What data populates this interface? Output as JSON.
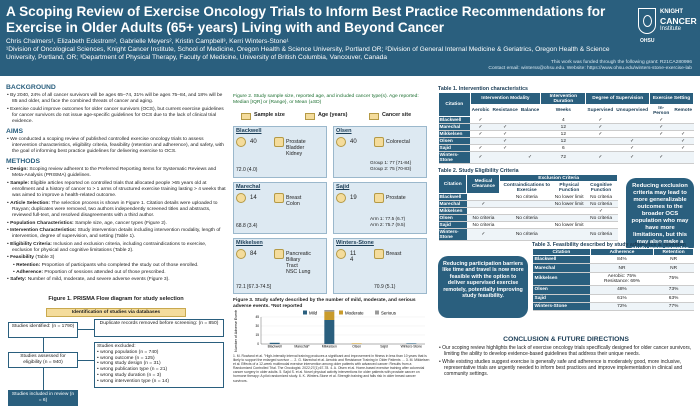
{
  "header": {
    "title": "A Scoping Review of Exercise Oncology Trials to Inform Best Practice Recommendations for Exercise in Older Adults (65+ years) Living with and Beyond Cancer",
    "authors": "Chris Chalmers¹, Elizabeth Eckstrom², Gabrielle Meyers², Kristin Campbell³, Kerri Winters-Stone¹",
    "affiliations": "¹Division of Oncological Sciences, Knight Cancer Institute, School of Medicine, Oregon Health & Science University, Portland OR; ²Division of General Internal Medicine & Geriatrics, Oregon Health & Science University, Portland, OR; ³Department of Physical Therapy, Faculty of Medicine, University of British Columbia, Vancouver, Canada",
    "funding": "This work was funded through the following grant: R21CA280996",
    "contact": "Contact email: winterss@ohsu.edu. Website: https://www.ohsu.edu/winters-stone-exercise-lab"
  },
  "logo": {
    "line1": "KNIGHT",
    "line2": "CANCER",
    "line3": "Institute",
    "line4": "OHSU"
  },
  "background": {
    "heading": "BACKGROUND",
    "bullets": [
      "By 2040, 24% of all cancer survivors will be ages 65–74, 31% will be ages 75–84, and 18% will be 85 and older, and face the combined threats of cancer and aging.",
      "Exercise could improve outcomes for older cancer survivors (OCS), but current exercise guidelines for cancer survivors do not issue age-specific guidelines for OCS due to the lack of clinical trial evidence."
    ]
  },
  "aims": {
    "heading": "AIMS",
    "bullets": [
      "We conducted a scoping review of published controlled exercise oncology trials to assess intervention characteristics, eligibility criteria, feasibility (retention and adherence), and safety, with the goal of informing best practice guidelines for delivering exercise to OCS."
    ]
  },
  "methods": {
    "heading": "METHODS",
    "bullets": [
      {
        "label": "Design:",
        "text": "Scoping review adherent to the Preferred Reporting Items for Systematic Reviews and Meta-Analysis (PRISMA) guidelines."
      },
      {
        "label": "Sample:",
        "text": "Eligible articles reported on controlled trials that allocated people >65 years old at enrollment and a history of cancer to > 1 arms of structured exercise training lasting > 4 weeks that was aimed to improve a health-related outcome."
      },
      {
        "label": "Article Selection:",
        "text": "The selection process is shown in Figure 1. Citation details were uploaded to Rayyan; duplicates were removed, two authors independently screened titles and abstracts, reviewed full-text, and resolved disagreements with a third author."
      },
      {
        "label": "Population Characteristics:",
        "text": "Sample size, age, cancer types (Figure 2)."
      },
      {
        "label": "Intervention Characteristics:",
        "text": "Study intervention details including intervention modality, length of intervention, degree of supervision, and setting (Table 1)."
      },
      {
        "label": "Eligibility Criteria:",
        "text": "Inclusion and exclusion criteria, including contraindications to exercise, exclusion for physical and cognitive limitations (Table 2)."
      },
      {
        "label": "Feasibility",
        "text": "(Table 3)"
      }
    ],
    "sub_bullets": [
      {
        "label": "Retention:",
        "text": "Proportion of participants who completed the study out of those enrolled."
      },
      {
        "label": "Adherence:",
        "text": "Proportion of sessions attended out of those prescribed."
      }
    ],
    "safety": {
      "label": "Safety:",
      "text": "Number of mild, moderate, and severe adverse events (Figure 3)."
    }
  },
  "prisma": {
    "caption": "Figure 1. PRISMA Flow diagram for study selection",
    "identification": "Identification of studies via databases",
    "identified": "Studies identified: (n = 1790)",
    "duplicates": "Duplicate records removed before screening: (n = 850)",
    "assessed": "Studies assessed for eligibility (n = 940)",
    "excluded_title": "Studies excluded:",
    "excluded": [
      "wrong population (n = 740)",
      "wrong outcome (n = 125)",
      "wrong study design (n = 31)",
      "wrong publication type (n = 21)",
      "wrong study duration (n = 3)",
      "wrong intervention type (n = 14)"
    ],
    "included": "Studies included in review (n = 6)"
  },
  "figure2": {
    "caption": "Figure 2. Study sample size, reported age, and included cancer type(s). Age reported: Median [IQR] or {Range}, or Mean (±SD)",
    "legend": [
      "Sample size",
      "Age (years)",
      "Cancer site"
    ],
    "panels": [
      {
        "name": "Blackwell",
        "size": "40",
        "age": "72.0 (4.0)",
        "cancer": "Prostate\nBladder\nKidney",
        "groups": ""
      },
      {
        "name": "Olsen",
        "size": "40",
        "age": "",
        "cancer": "Colorectal",
        "groups": "Group 1: 77 {71-84}\nGroup 2: 75 {70-83}"
      },
      {
        "name": "Marechal",
        "size": "14",
        "age": "68.8 (3.4)",
        "cancer": "Breast\nColon",
        "groups": ""
      },
      {
        "name": "Sajid",
        "size": "19",
        "age": "",
        "cancer": "Prostate",
        "groups": "Arm 1: 77.5 (6.7)\nArm 2: 75.7 (9.5)"
      },
      {
        "name": "Mikkelsen",
        "size": "84",
        "age": "72.1 [67.3-74.5]",
        "cancer": "Pancreatic\nBiliary\nTract\nNSC Lung",
        "groups": ""
      },
      {
        "name": "Winters-Stone",
        "size": "11\n4",
        "age": "70.9 (5.1)",
        "cancer": "Breast",
        "groups": ""
      }
    ]
  },
  "figure3": {
    "caption": "Figure 3. Study safety described by the number of mild, moderate, and serious adverse events. *Not reported",
    "legend": [
      "Mild",
      "Moderate",
      "Serious"
    ],
    "ylabel": "Number of Adverse Events"
  },
  "chart_data": {
    "type": "bar",
    "title": "",
    "xlabel": "",
    "ylabel": "Number of Adverse Events",
    "categories": [
      "Blackwell",
      "Marechal*",
      "Mikkelsen",
      "Olsen",
      "Sajid",
      "Winters-Stone"
    ],
    "ylim": [
      0,
      45
    ],
    "yticks": [
      0,
      5,
      10,
      15,
      20,
      25,
      30,
      35,
      40,
      45
    ],
    "series": [
      {
        "name": "Mild",
        "color": "#2a5f7e",
        "values": [
          2,
          0,
          40,
          0,
          0,
          1
        ]
      },
      {
        "name": "Moderate",
        "color": "#c99b2c",
        "values": [
          0,
          0,
          14,
          1,
          0,
          0
        ]
      },
      {
        "name": "Serious",
        "color": "#9a9a9a",
        "values": [
          0,
          0,
          4,
          0,
          0,
          0
        ]
      }
    ]
  },
  "references": "1. M. Rowland et al. \"High-intensity interval training produces a significant and improvement in fitness in less than 10 years that is likely to support the enlarged survivor … 2. G. Marechal et al. Aerobic and Resistance Training in Older Patients …  3. M. Mikkelsen et al. Effects of a 12-week multimodal exercise intervention among older patients with advanced cancer: Results from a Randomized Controlled Trial. The Oncologist. 2022;27(1):67-78.  4. A. Olsen et al. Home-based exercise training after colorectal cancer surgery in older adults.  5. Sajid S. et al. Novel physical activity interventions for older patients with prostate cancer on hormone therapy: A pilot randomized study.  6. K. Winters-Stone et al. Strength training and falls risk in older breast cancer survivors.",
  "table1": {
    "caption": "Table 1. Intervention characteristics",
    "headers": [
      "Citation",
      "Intervention Modality",
      "Intervention Duration",
      "Degree of Supervision",
      "Exercise Setting"
    ],
    "subheaders": [
      "Aerobic",
      "Resistance",
      "Balance",
      "Weeks",
      "Supervised",
      "Unsupervised",
      "In-Person",
      "Remote"
    ],
    "rows": [
      [
        "Blackwell",
        "✓",
        "",
        "",
        "4",
        "✓",
        "",
        "✓",
        ""
      ],
      [
        "Marechal",
        "✓",
        "✓",
        "",
        "12",
        "✓",
        "",
        "✓",
        ""
      ],
      [
        "Mikkelsen",
        "✓",
        "✓",
        "",
        "12",
        "✓",
        "",
        "✓",
        "✓"
      ],
      [
        "Olsen",
        "",
        "✓",
        "",
        "12",
        "",
        "✓",
        "",
        "✓"
      ],
      [
        "Sajid",
        "✓",
        "✓",
        "",
        "6",
        "",
        "✓",
        "",
        "✓"
      ],
      [
        "Winters-Stone",
        "✓",
        "",
        "✓",
        "72",
        "✓",
        "✓",
        "✓",
        ""
      ]
    ]
  },
  "table2": {
    "caption": "Table 2. Study Eligibility Criteria",
    "headers": [
      "Citation",
      "Medical Clearance",
      "Exclusion Criteria"
    ],
    "subheaders": [
      "Contraindications to Exercise",
      "Physical Function",
      "Cognitive Function"
    ],
    "rows": [
      [
        "Blackwell",
        "",
        "No criteria",
        "No lower limit",
        "No criteria"
      ],
      [
        "Marechal",
        "✓",
        "",
        "No lower limit",
        "No criteria"
      ],
      [
        "Mikkelsen",
        "",
        "",
        "",
        "✓"
      ],
      [
        "Olsen",
        "No criteria",
        "No criteria",
        "",
        "No criteria"
      ],
      [
        "Sajid",
        "No criteria",
        "",
        "No lower limit",
        ""
      ],
      [
        "Winters-Stone",
        "✓",
        "No criteria",
        "",
        "No criteria"
      ]
    ]
  },
  "table3": {
    "caption": "Table 3. Feasibility described by study adherence & retention",
    "headers": [
      "Citation",
      "Adherence",
      "Retention"
    ],
    "rows": [
      [
        "Blackwell",
        "84%",
        "NR"
      ],
      [
        "Marechal",
        "NR",
        "NR"
      ],
      [
        "Mikkelsen",
        "Aerobic: 75%\nResistance: 69%",
        "75%"
      ],
      [
        "Olsen",
        "48%",
        "73%"
      ],
      [
        "Sajid",
        "61%",
        "63%"
      ],
      [
        "Winters-Stone",
        "72%",
        "77%"
      ]
    ]
  },
  "callouts": {
    "right": "Reducing exclusion criteria may lead to more generalizable outcomes to the broader OCS population who may have more limitations, but this may also make a study more complex",
    "left": "Reducing participation barriers like time and travel is now more feasible with the option to deliver supervised exercise remotely, potentially improving study feasibility."
  },
  "conclusion": {
    "heading": "CONCLUSION & FUTURE DIRECTIONS",
    "bullets": [
      "Our scoping review highlights the lack of exercise oncology trials specifically designed for older cancer survivors, limiting the ability to develop evidence-based guidelines that address their unique needs.",
      "While existing studies suggest exercise is generally safe and adherence is moderately good, more inclusive, representative trials are urgently needed to inform best practices and improve implementation in clinical and community settings."
    ]
  }
}
